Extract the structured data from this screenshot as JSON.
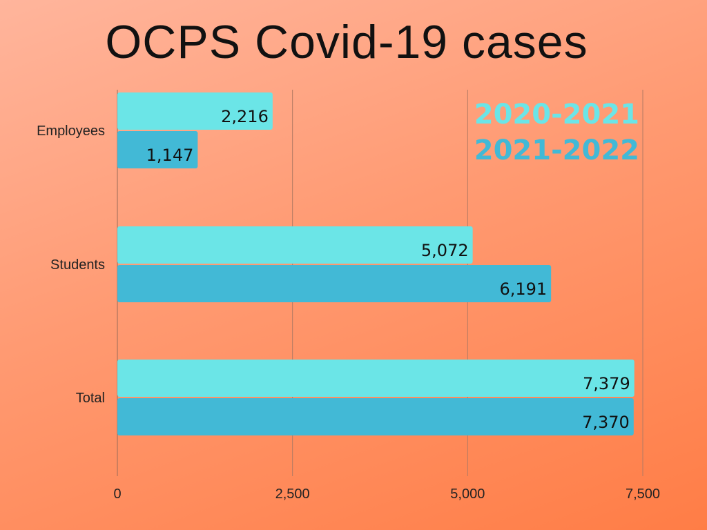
{
  "chart_data": {
    "type": "bar",
    "orientation": "horizontal",
    "title": "OCPS Covid-19 cases",
    "categories": [
      "Employees",
      "Students",
      "Total"
    ],
    "series": [
      {
        "name": "2020-2021",
        "values": [
          2216,
          5072,
          7379
        ],
        "labels": [
          "2,216",
          "5,072",
          "7,379"
        ],
        "color": "#6be5e7"
      },
      {
        "name": "2021-2022",
        "values": [
          1147,
          6191,
          7370
        ],
        "labels": [
          "1,147",
          "6,191",
          "7,370"
        ],
        "color": "#42b9d6"
      }
    ],
    "xlim": [
      0,
      7500
    ],
    "xticks": [
      0,
      2500,
      5000,
      7500
    ],
    "xtick_labels": [
      "0",
      "2,500",
      "5,000",
      "7,500"
    ],
    "grid": true,
    "legend_position": "top-right"
  }
}
